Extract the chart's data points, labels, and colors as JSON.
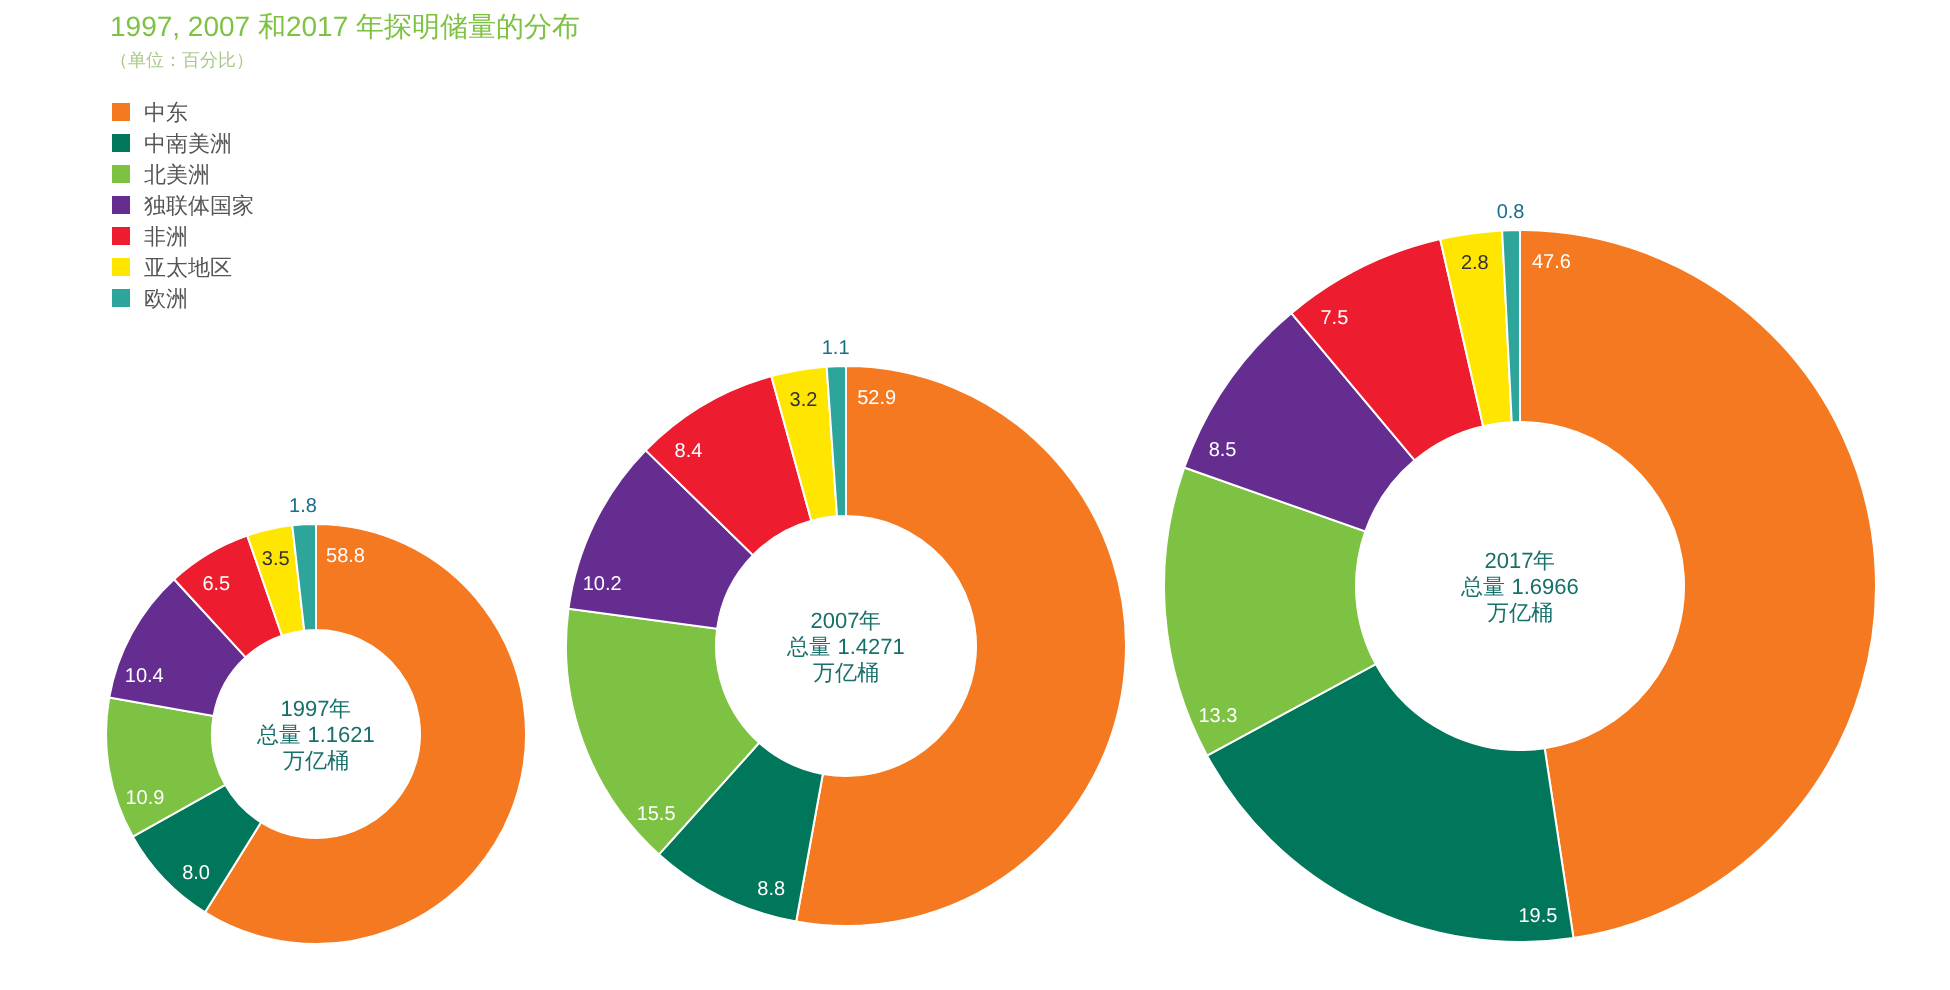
{
  "chart_data": [
    {
      "type": "donut",
      "title": "1997, 2007 和2017 年探明储量的分布",
      "subtitle": "（单位：百分比）",
      "legend": "top left",
      "categories": [
        "中东",
        "中南美洲",
        "北美洲",
        "独联体国家",
        "非洲",
        "亚太地区",
        "欧洲"
      ],
      "values": [
        58.8,
        8.0,
        10.9,
        10.4,
        6.5,
        3.5,
        1.8
      ],
      "value_labels": [
        "58.8",
        "8.0",
        "10.9",
        "10.4",
        "6.5",
        "3.5",
        "1.8"
      ],
      "colors": [
        "#f47920",
        "#00775a",
        "#7dc242",
        "#662d91",
        "#ed1c2e",
        "#ffe600",
        "#2ea59b"
      ],
      "annotations": [
        "1997年",
        "总量 1.1621",
        "万亿桶"
      ]
    },
    {
      "type": "donut",
      "categories": [
        null,
        null,
        null,
        null,
        null,
        null,
        null
      ],
      "values": [
        52.9,
        8.8,
        15.5,
        10.2,
        8.4,
        3.2,
        1.1
      ],
      "value_labels": [
        "52.9",
        "8.8",
        "15.5",
        "10.2",
        "8.4",
        "3.2",
        "1.1"
      ],
      "colors": [
        "#f47920",
        "#00775a",
        "#7dc242",
        "#662d91",
        "#ed1c2e",
        "#ffe600",
        "#2ea59b"
      ],
      "annotations": [
        "2007年",
        "总量 1.4271",
        "万亿桶"
      ]
    },
    {
      "type": "donut",
      "categories": [
        null,
        null,
        null,
        null,
        null,
        null,
        null
      ],
      "values": [
        47.6,
        19.5,
        13.3,
        8.5,
        7.5,
        2.8,
        0.8
      ],
      "value_labels": [
        "47.6",
        "19.5",
        "13.3",
        "8.5",
        "7.5",
        "2.8",
        "0.8"
      ],
      "colors": [
        "#f47920",
        "#00775a",
        "#7dc242",
        "#662d91",
        "#ed1c2e",
        "#ffe600",
        "#2ea59b"
      ],
      "annotations": [
        "2017年",
        "总量 1.6966",
        "万亿桶"
      ]
    }
  ]
}
